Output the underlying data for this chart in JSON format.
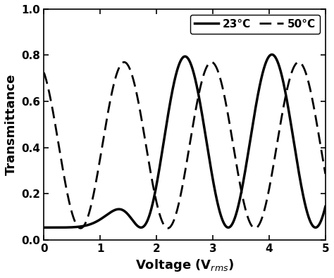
{
  "xlim": [
    0,
    5
  ],
  "ylim": [
    0.0,
    1.0
  ],
  "xlabel": "Voltage (V$_{rms}$)",
  "ylabel": "Transmittance",
  "xticks": [
    0,
    1,
    2,
    3,
    4,
    5
  ],
  "yticks": [
    0.0,
    0.2,
    0.4,
    0.6,
    0.8,
    1.0
  ],
  "legend_23": "23°C",
  "legend_50": "50°C",
  "line_color": "black",
  "linewidth_solid": 2.5,
  "linewidth_dashed": 2.0,
  "background_color": "#ffffff",
  "figsize": [
    4.74,
    3.95
  ],
  "dpi": 100
}
